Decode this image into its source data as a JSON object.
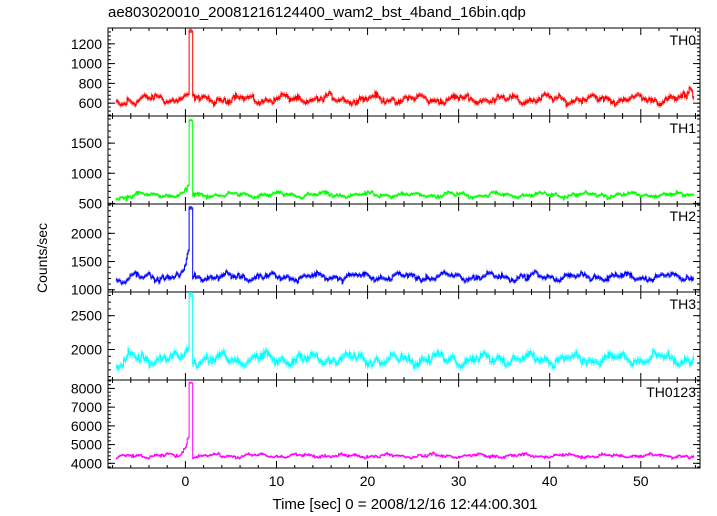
{
  "title": "ae803020010_20081216124400_wam2_bst_4band_16bin.qdp",
  "chart_data": {
    "type": "line",
    "xlabel": "Time [sec] 0 = 2008/12/16 12:44:00.301",
    "ylabel": "Counts/sec",
    "xlim": [
      -8.5,
      56.5
    ],
    "x_ticks": [
      0,
      10,
      20,
      30,
      40,
      50
    ],
    "x_tick_labels": [
      "0",
      "10",
      "20",
      "30",
      "40",
      "50"
    ],
    "panels": [
      {
        "name": "TH0",
        "color": "#ff0000",
        "ylim": [
          470,
          1360
        ],
        "y_ticks": [
          600,
          800,
          1000,
          1200
        ],
        "y_tick_labels": [
          "600",
          "800",
          "1000",
          "1200"
        ],
        "baseline": 640,
        "noise": 45,
        "peak_x": 0.5,
        "peak_value": 1330,
        "end_value": 760,
        "x": [
          -7.6,
          -4,
          0,
          0.5,
          1,
          10,
          20,
          30,
          40,
          50,
          55.8
        ],
        "y": [
          600,
          650,
          690,
          1330,
          660,
          630,
          640,
          630,
          640,
          630,
          760
        ]
      },
      {
        "name": "TH1",
        "color": "#00ff00",
        "ylim": [
          490,
          1950
        ],
        "y_ticks": [
          500,
          1000,
          1500
        ],
        "y_tick_labels": [
          "500",
          "1000",
          "1500"
        ],
        "baseline": 640,
        "noise": 45,
        "peak_x": 0.5,
        "peak_value": 1880,
        "end_value": 650,
        "x": [
          -7.6,
          -4,
          0,
          0.5,
          1,
          10,
          20,
          30,
          40,
          50,
          55.8
        ],
        "y": [
          590,
          660,
          800,
          1880,
          640,
          640,
          680,
          640,
          640,
          660,
          650
        ]
      },
      {
        "name": "TH2",
        "color": "#0000ff",
        "ylim": [
          960,
          2520
        ],
        "y_ticks": [
          1000,
          1500,
          2000
        ],
        "y_tick_labels": [
          "1000",
          "1500",
          "2000"
        ],
        "baseline": 1230,
        "noise": 70,
        "peak_x": 0.5,
        "peak_value": 2450,
        "end_value": 1200,
        "x": [
          -7.6,
          -4,
          0,
          0.5,
          1,
          10,
          20,
          30,
          40,
          50,
          55.8
        ],
        "y": [
          1120,
          1300,
          1700,
          2450,
          1200,
          1220,
          1220,
          1250,
          1250,
          1230,
          1200
        ]
      },
      {
        "name": "TH3",
        "color": "#00ffff",
        "ylim": [
          1550,
          2850
        ],
        "y_ticks": [
          2000,
          2500
        ],
        "y_tick_labels": [
          "2000",
          "2500"
        ],
        "baseline": 1860,
        "noise": 90,
        "peak_x": 0.5,
        "peak_value": 2820,
        "end_value": 1800,
        "x": [
          -7.6,
          -4,
          0,
          0.5,
          1,
          10,
          20,
          30,
          40,
          50,
          55.8
        ],
        "y": [
          1700,
          1850,
          2050,
          2820,
          1900,
          1850,
          1850,
          1850,
          1850,
          1850,
          1800
        ]
      },
      {
        "name": "TH0123",
        "color": "#ff00ff",
        "ylim": [
          3750,
          8450
        ],
        "y_ticks": [
          4000,
          5000,
          6000,
          7000,
          8000
        ],
        "y_tick_labels": [
          "4000",
          "5000",
          "6000",
          "7000",
          "8000"
        ],
        "baseline": 4400,
        "noise": 110,
        "peak_x": 0.5,
        "peak_value": 8300,
        "end_value": 4300,
        "x": [
          -7.6,
          -4,
          0,
          0.5,
          1,
          10,
          20,
          30,
          40,
          50,
          55.8
        ],
        "y": [
          4150,
          4400,
          5400,
          8300,
          4400,
          4400,
          4450,
          4400,
          4450,
          4420,
          4300
        ]
      }
    ]
  }
}
